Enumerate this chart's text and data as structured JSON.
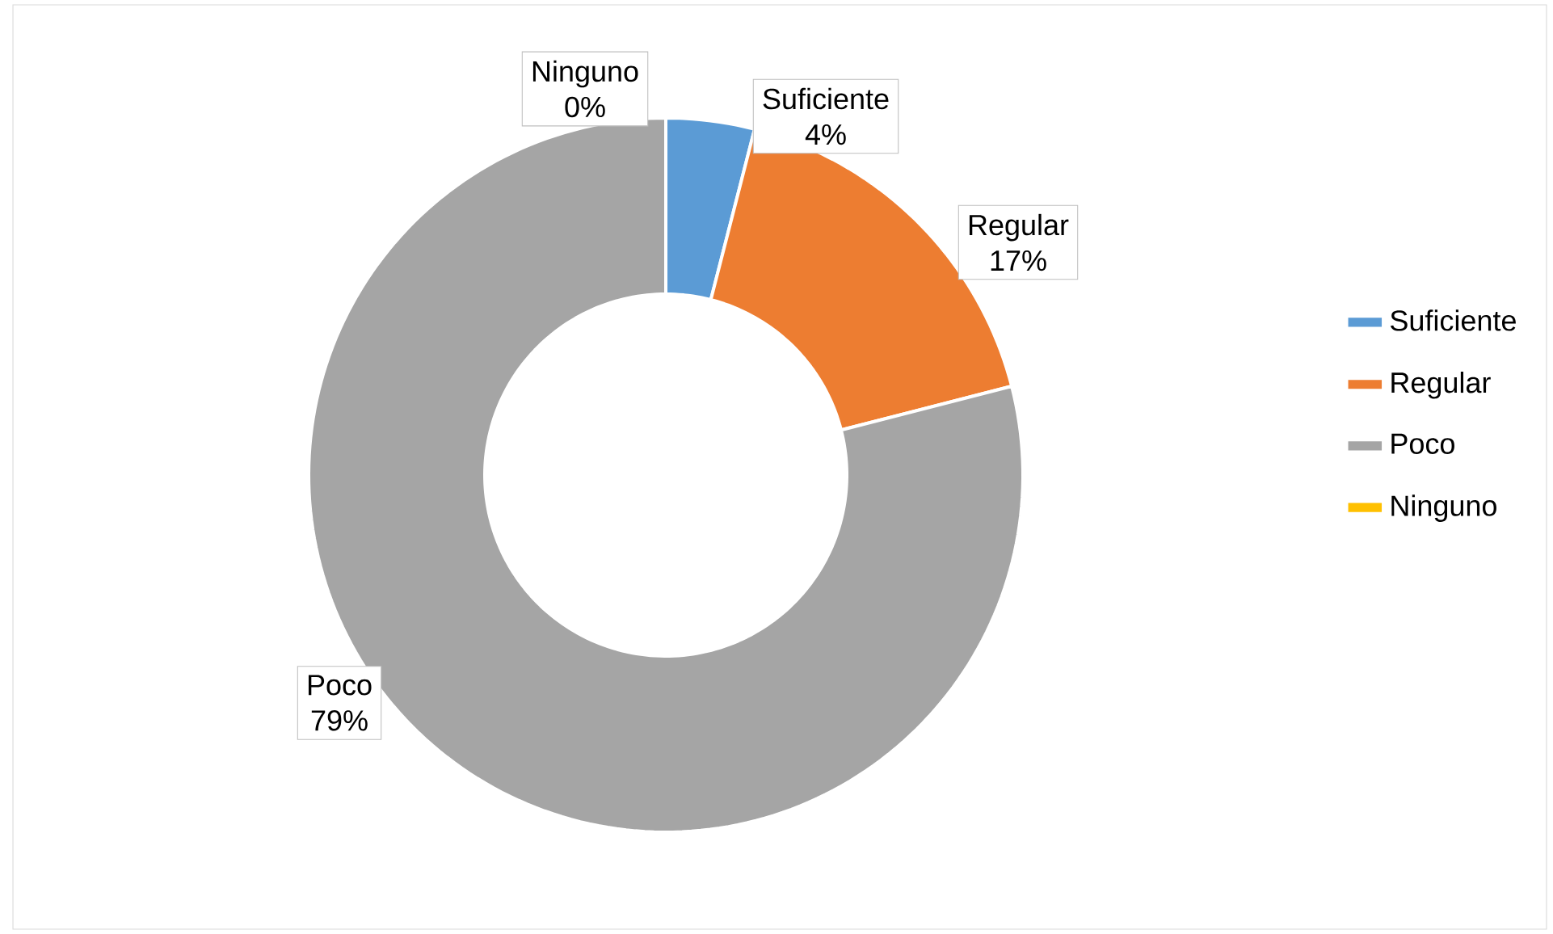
{
  "chart_data": {
    "type": "donut",
    "categories": [
      "Suficiente",
      "Regular",
      "Poco",
      "Ninguno"
    ],
    "values": [
      4,
      17,
      79,
      0
    ],
    "colors": [
      "#5b9bd5",
      "#ed7d31",
      "#a5a5a5",
      "#ffc000"
    ],
    "value_labels": [
      "4%",
      "17%",
      "79%",
      "0%"
    ],
    "legend": "right"
  }
}
